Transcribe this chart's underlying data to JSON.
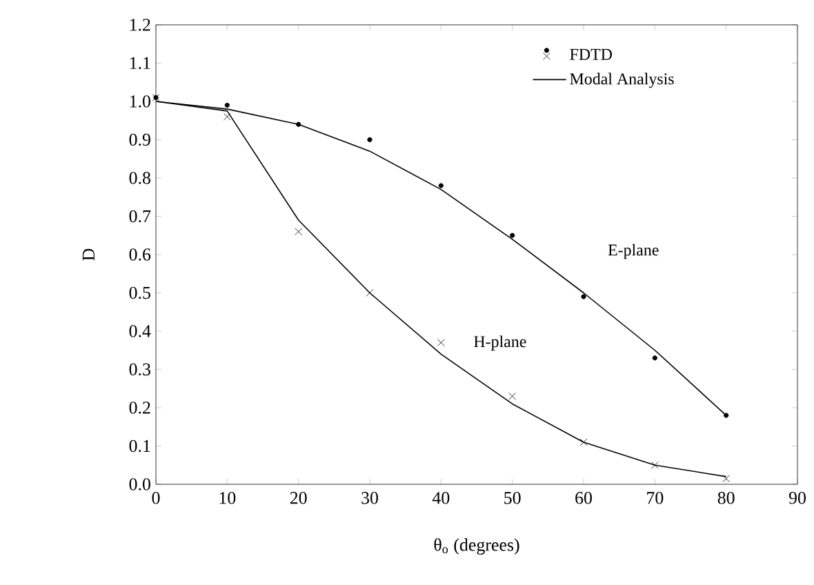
{
  "chart_data": {
    "type": "line",
    "xlabel": "θ$_{o}$ (degrees)",
    "ylabel": "D",
    "xlim": [
      0,
      90
    ],
    "xticks": [
      0,
      10,
      20,
      30,
      40,
      50,
      60,
      70,
      80,
      90
    ],
    "ylim": [
      0,
      1.2
    ],
    "yticks": [
      {
        "value": 0,
        "label": "0.0"
      },
      0.1,
      0.2,
      0.3,
      0.4,
      0.5,
      0.6,
      0.7,
      0.8,
      0.9,
      {
        "value": 1,
        "label": "1.0"
      },
      1.1,
      1.2
    ],
    "x": [
      0,
      10,
      20,
      30,
      40,
      50,
      60,
      70,
      80
    ],
    "series": [
      {
        "name": "FDTD",
        "type": "scatter",
        "marker": "circle",
        "color": "#000000",
        "values": [
          1.01,
          0.99,
          0.94,
          0.9,
          0.78,
          0.65,
          0.49,
          0.33,
          0.18
        ]
      },
      {
        "type": "scatter",
        "marker": "cross",
        "color": "#000000",
        "values": [
          1.01,
          0.96,
          0.66,
          0.5,
          0.37,
          0.23,
          0.11,
          0.05,
          0.015
        ]
      },
      {
        "name": "Modal Analysis",
        "marker": "none",
        "color": "#000000",
        "values": [
          1.0,
          0.98,
          0.94,
          0.87,
          0.77,
          0.64,
          0.5,
          0.35,
          0.18
        ]
      },
      {
        "marker": "none",
        "color": "#000000",
        "values": [
          1.0,
          0.975,
          0.69,
          0.5,
          0.34,
          0.21,
          0.11,
          0.05,
          0.02
        ]
      }
    ],
    "annotations": [
      {
        "text": "E-plane",
        "x": 60,
        "y": 0.5
      },
      {
        "text": "H-plane",
        "x": 40,
        "y": 0.34
      }
    ],
    "legend": "top right",
    "line_style": "solid",
    "grid": false
  }
}
